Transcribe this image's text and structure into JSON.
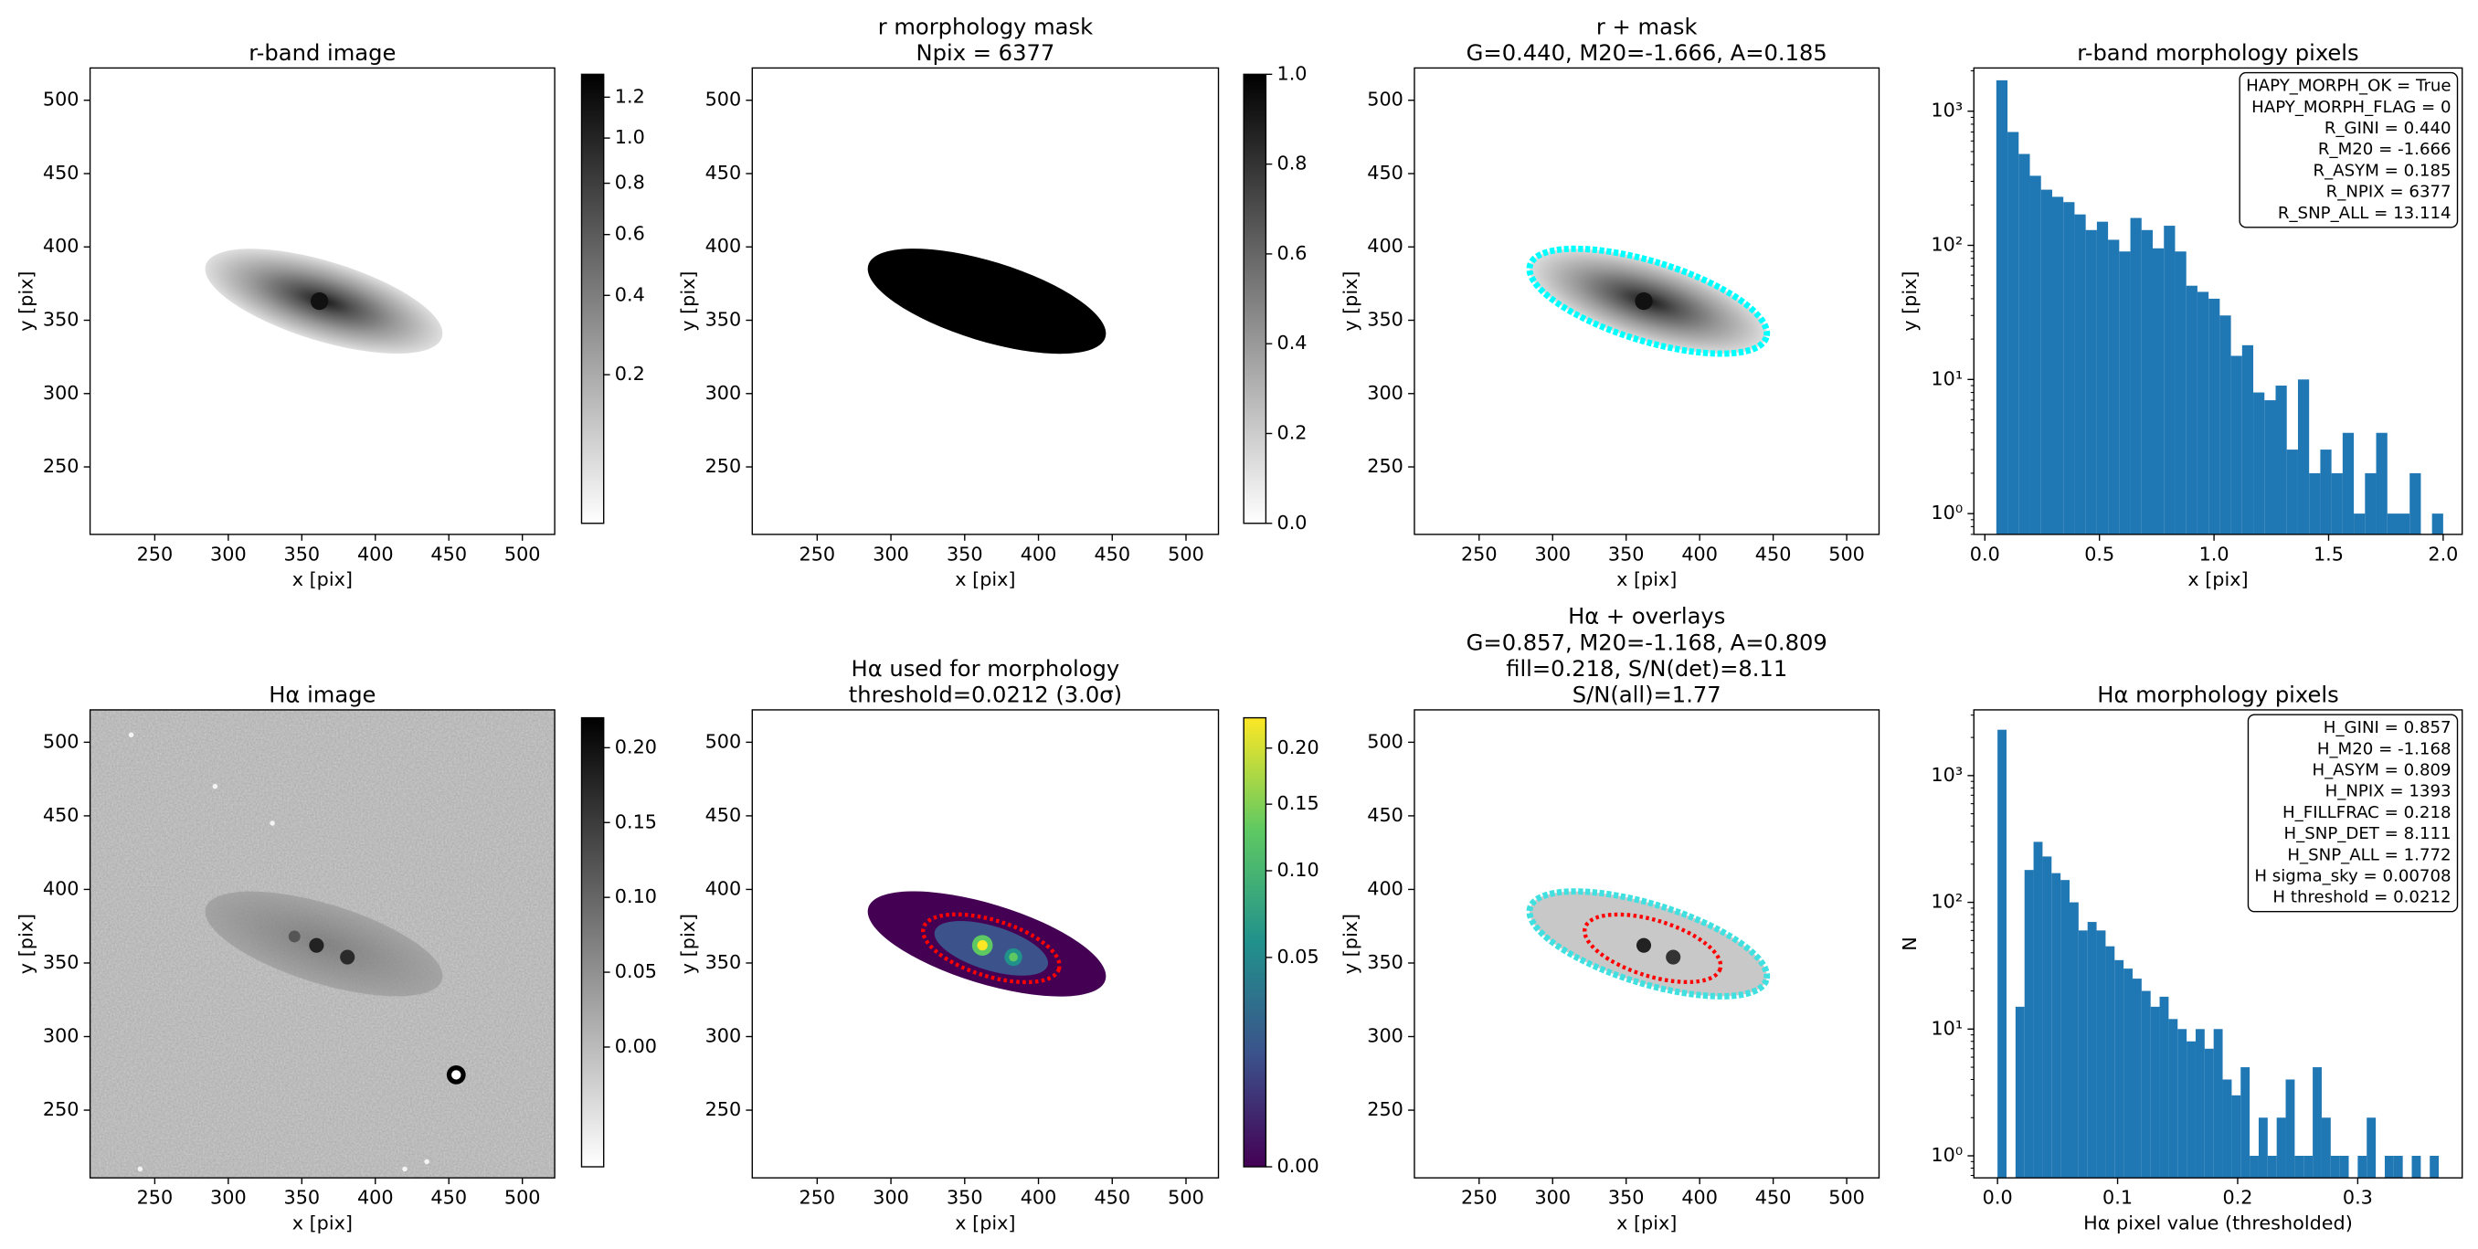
{
  "chart_data": [
    {
      "type": "image",
      "title": [
        "r-band image"
      ],
      "xlabel": "x [pix]",
      "ylabel": "y [pix]",
      "xlim": [
        206,
        522
      ],
      "ylim": [
        204,
        522
      ],
      "xticks": [
        250,
        300,
        350,
        400,
        450,
        500
      ],
      "yticks": [
        250,
        300,
        350,
        400,
        450,
        500
      ],
      "colorbar": {
        "colormap": "gray_r",
        "stretch": "sqrt",
        "lim": [
          0.01,
          1.32
        ],
        "ticks": [
          0.2,
          0.4,
          0.6,
          0.8,
          {
            "value": 1.0,
            "label": "1.0"
          },
          1.2
        ]
      }
    },
    {
      "type": "image",
      "title": [
        "r morphology mask",
        "Npix = 6377"
      ],
      "xlabel": "x [pix]",
      "ylabel": "y [pix]",
      "xlim": [
        206,
        522
      ],
      "ylim": [
        204,
        522
      ],
      "xticks": [
        250,
        300,
        350,
        400,
        450,
        500
      ],
      "yticks": [
        250,
        300,
        350,
        400,
        450,
        500
      ],
      "colorbar": {
        "colormap": "gray_r",
        "stretch": "linear",
        "lim": [
          0,
          1
        ],
        "ticks": [
          {
            "value": 0,
            "label": "0.0"
          },
          0.2,
          0.4,
          0.6,
          0.8,
          {
            "value": 1,
            "label": "1.0"
          }
        ]
      }
    },
    {
      "type": "image",
      "title": [
        "r + mask",
        "G=0.440, M20=-1.666, A=0.185"
      ],
      "xlabel": "x [pix]",
      "ylabel": "y [pix]",
      "xlim": [
        206,
        522
      ],
      "ylim": [
        204,
        522
      ],
      "xticks": [
        250,
        300,
        350,
        400,
        450,
        500
      ],
      "yticks": [
        250,
        300,
        350,
        400,
        450,
        500
      ]
    },
    {
      "type": "histogram",
      "title": [
        "r-band morphology pixels"
      ],
      "xlabel": "x [pix]",
      "ylabel": "y [pix]",
      "color": "#1f77b4",
      "log_y": true,
      "bins": [
        0.05,
        0.0988,
        0.1475,
        0.1963,
        0.245,
        0.2938,
        0.3425,
        0.3913,
        0.44,
        0.4888,
        0.5375,
        0.5863,
        0.635,
        0.6838,
        0.7325,
        0.7813,
        0.83,
        0.8788,
        0.9275,
        0.9763,
        1.025,
        1.0738,
        1.1225,
        1.1713,
        1.22,
        1.2688,
        1.3175,
        1.3663,
        1.415,
        1.4638,
        1.5125,
        1.5613,
        1.61,
        1.6588,
        1.7075,
        1.7563,
        1.805,
        1.8538,
        1.9025,
        1.9513,
        2.0
      ],
      "counts": [
        1700,
        700,
        480,
        330,
        260,
        230,
        210,
        170,
        130,
        150,
        110,
        90,
        160,
        130,
        95,
        140,
        90,
        50,
        45,
        40,
        30,
        15,
        18,
        8,
        7,
        9,
        3,
        10,
        2,
        3,
        2,
        4,
        1,
        2,
        4,
        1,
        1,
        2,
        0,
        1
      ],
      "xlim": [
        -0.048,
        2.083
      ],
      "ylim": [
        0.7,
        2100
      ],
      "xticks": [
        {
          "value": 0,
          "label": "0.0"
        },
        0.5,
        {
          "value": 1,
          "label": "1.0"
        },
        1.5,
        {
          "value": 2,
          "label": "2.0"
        }
      ],
      "yticks": [
        {
          "value": 1,
          "label": "10⁰"
        },
        {
          "value": 10,
          "label": "10¹"
        },
        {
          "value": 100,
          "label": "10²"
        },
        {
          "value": 1000,
          "label": "10³"
        }
      ],
      "annotation": [
        "HAPY_MORPH_OK = True",
        "HAPY_MORPH_FLAG = 0",
        "R_GINI = 0.440",
        "R_M20 = -1.666",
        "R_ASYM = 0.185",
        "R_NPIX = 6377",
        "R_SNP_ALL = 13.114"
      ]
    },
    {
      "type": "image",
      "title": [
        "Hα image"
      ],
      "xlabel": "x [pix]",
      "ylabel": "y [pix]",
      "xlim": [
        206,
        522
      ],
      "ylim": [
        204,
        522
      ],
      "xticks": [
        250,
        300,
        350,
        400,
        450,
        500
      ],
      "yticks": [
        250,
        300,
        350,
        400,
        450,
        500
      ],
      "colorbar": {
        "colormap": "gray_r",
        "stretch": "linear",
        "lim": [
          -0.08,
          0.22
        ],
        "ticks": [
          {
            "value": 0,
            "label": "0.00"
          },
          0.05,
          {
            "value": 0.1,
            "label": "0.10"
          },
          0.15,
          {
            "value": 0.2,
            "label": "0.20"
          }
        ]
      }
    },
    {
      "type": "image",
      "title": [
        "Hα used for morphology",
        "threshold=0.0212 (3.0σ)"
      ],
      "xlabel": "x [pix]",
      "ylabel": "y [pix]",
      "xlim": [
        206,
        522
      ],
      "ylim": [
        204,
        522
      ],
      "xticks": [
        250,
        300,
        350,
        400,
        450,
        500
      ],
      "yticks": [
        250,
        300,
        350,
        400,
        450,
        500
      ],
      "colorbar": {
        "colormap": "viridis",
        "stretch": "sqrt",
        "lim": [
          0,
          0.23
        ],
        "ticks": [
          {
            "value": 0,
            "label": "0.00"
          },
          0.05,
          {
            "value": 0.1,
            "label": "0.10"
          },
          0.15,
          {
            "value": 0.2,
            "label": "0.20"
          }
        ]
      }
    },
    {
      "type": "image",
      "title": [
        "Hα + overlays",
        "G=0.857, M20=-1.168, A=0.809",
        "fill=0.218, S/N(det)=8.11",
        "S/N(all)=1.77"
      ],
      "xlabel": "x [pix]",
      "ylabel": "y [pix]",
      "xlim": [
        206,
        522
      ],
      "ylim": [
        204,
        522
      ],
      "xticks": [
        250,
        300,
        350,
        400,
        450,
        500
      ],
      "yticks": [
        250,
        300,
        350,
        400,
        450,
        500
      ]
    },
    {
      "type": "histogram",
      "title": [
        "Hα morphology pixels"
      ],
      "xlabel": "Hα pixel value (thresholded)",
      "ylabel": "N",
      "color": "#1f77b4",
      "log_y": true,
      "bins": [
        0,
        0.0075,
        0.015,
        0.0225,
        0.03,
        0.0375,
        0.045,
        0.0525,
        0.06,
        0.0675,
        0.075,
        0.0825,
        0.09,
        0.0975,
        0.105,
        0.1125,
        0.12,
        0.1275,
        0.135,
        0.1425,
        0.15,
        0.1575,
        0.165,
        0.1725,
        0.18,
        0.1875,
        0.195,
        0.2025,
        0.21,
        0.2175,
        0.225,
        0.2325,
        0.24,
        0.2475,
        0.255,
        0.2625,
        0.27,
        0.2775,
        0.285,
        0.2925,
        0.3,
        0.3075,
        0.315,
        0.3225,
        0.33,
        0.3375,
        0.345,
        0.3525,
        0.36,
        0.3675
      ],
      "counts": [
        2300,
        0,
        15,
        180,
        300,
        230,
        170,
        150,
        100,
        60,
        70,
        60,
        45,
        35,
        30,
        25,
        20,
        15,
        18,
        12,
        10,
        8,
        10,
        7,
        10,
        4,
        3,
        5,
        1,
        2,
        1,
        2,
        4,
        1,
        1,
        5,
        2,
        1,
        1,
        0,
        1,
        2,
        0,
        1,
        1,
        0,
        1,
        0,
        1
      ],
      "xlim": [
        -0.0197,
        0.387
      ],
      "ylim": [
        0.67,
        3300
      ],
      "xticks": [
        {
          "value": 0,
          "label": "0.0"
        },
        0.1,
        0.2,
        0.3
      ],
      "yticks": [
        {
          "value": 1,
          "label": "10⁰"
        },
        {
          "value": 10,
          "label": "10¹"
        },
        {
          "value": 100,
          "label": "10²"
        },
        {
          "value": 1000,
          "label": "10³"
        }
      ],
      "annotation": [
        "H_GINI = 0.857",
        "H_M20 = -1.168",
        "H_ASYM = 0.809",
        "H_NPIX = 1393",
        "H_FILLFRAC = 0.218",
        "H_SNP_DET = 8.111",
        "H_SNP_ALL = 1.772",
        "H sigma_sky = 0.00708",
        "H threshold = 0.0212"
      ]
    }
  ]
}
